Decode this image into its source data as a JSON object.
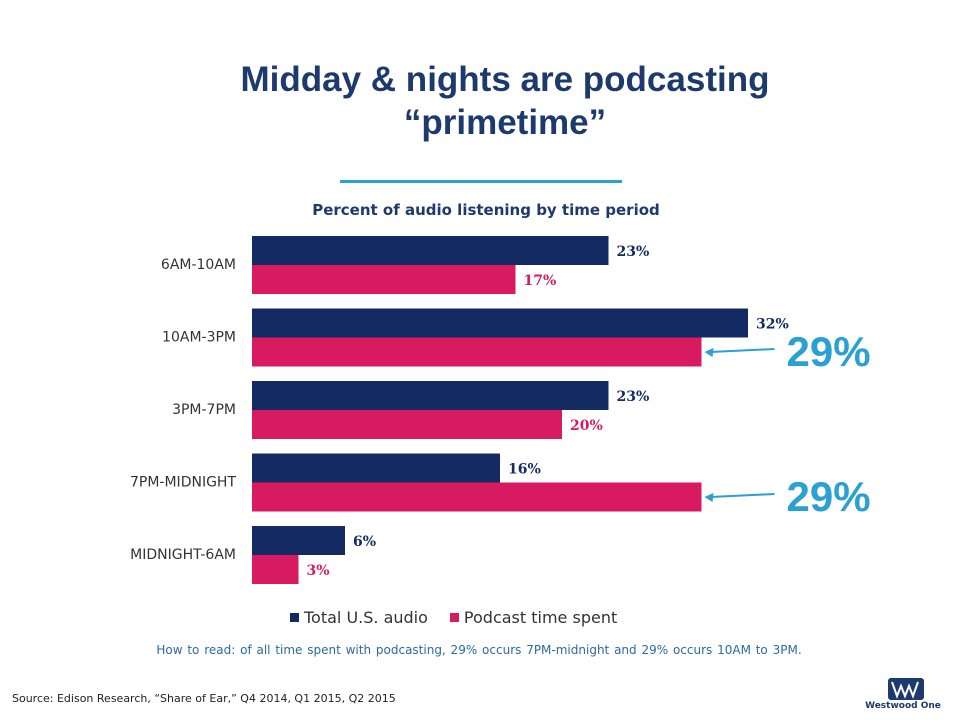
{
  "title": {
    "line1": "Midday & nights are podcasting",
    "line2": "“primetime”"
  },
  "subtitle": "Percent of audio listening  by time period",
  "chart_data": {
    "type": "bar",
    "orientation": "horizontal",
    "title": "Percent of audio listening  by time period",
    "categories": [
      "6AM-10AM",
      "10AM-3PM",
      "3PM-7PM",
      "7PM-MIDNIGHT",
      "MIDNIGHT-6AM"
    ],
    "series": [
      {
        "name": "Total U.S. audio",
        "values": [
          23,
          32,
          23,
          16,
          6
        ],
        "labels": [
          "23%",
          "32%",
          "23%",
          "16%",
          "6%"
        ],
        "color": "#132a63"
      },
      {
        "name": "Podcast time spent",
        "values": [
          17,
          29,
          20,
          29,
          3
        ],
        "labels": [
          "17%",
          "",
          "20%",
          "",
          "3%"
        ],
        "color": "#d81b60"
      }
    ],
    "xlim": [
      0,
      32
    ],
    "grid": false,
    "legend_position": "bottom",
    "callouts": [
      {
        "category": "10AM-3PM",
        "series": "Podcast time spent",
        "text": "29%"
      },
      {
        "category": "7PM-MIDNIGHT",
        "series": "Podcast time spent",
        "text": "29%"
      }
    ]
  },
  "colors": {
    "total_audio": "#132a63",
    "podcast": "#d81b60",
    "callout": "#2aa0d4",
    "title": "#1d3a6e"
  },
  "legend": {
    "total_label": "Total U.S. audio",
    "podcast_label": "Podcast time spent"
  },
  "how_to_read": "How to read: of all time spent with podcasting, 29% occurs 7PM-midnight  and 29% occurs 10AM to 3PM.",
  "source": "Source: Edison Research, “Share of Ear,” Q4 2014, Q1 2015, Q2 2015",
  "logo": {
    "icon": "westwood-one-logo-icon",
    "text": "Westwood One"
  }
}
